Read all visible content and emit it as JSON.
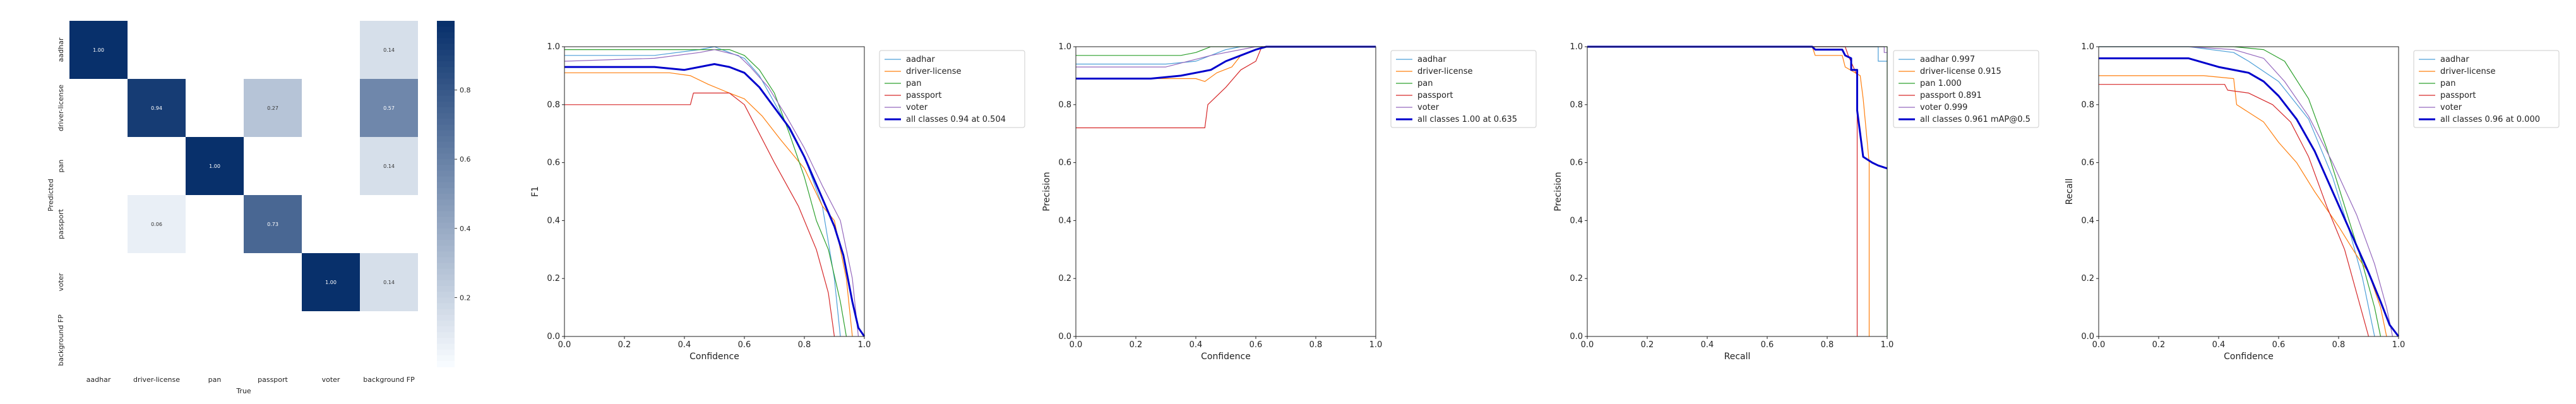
{
  "chart_data": [
    {
      "type": "heatmap",
      "xlabel": "True",
      "ylabel": "Predicted",
      "x_categories": [
        "aadhar",
        "driver-license",
        "pan",
        "passport",
        "voter",
        "background FP"
      ],
      "y_categories": [
        "aadhar",
        "driver-license",
        "pan",
        "passport",
        "voter",
        "background FP"
      ],
      "cells": [
        {
          "row": 0,
          "col": 0,
          "value": 1.0,
          "label": "1.00"
        },
        {
          "row": 0,
          "col": 5,
          "value": 0.14,
          "label": "0.14"
        },
        {
          "row": 1,
          "col": 1,
          "value": 0.94,
          "label": "0.94"
        },
        {
          "row": 1,
          "col": 3,
          "value": 0.27,
          "label": "0.27"
        },
        {
          "row": 1,
          "col": 5,
          "value": 0.57,
          "label": "0.57"
        },
        {
          "row": 2,
          "col": 2,
          "value": 1.0,
          "label": "1.00"
        },
        {
          "row": 2,
          "col": 5,
          "value": 0.14,
          "label": "0.14"
        },
        {
          "row": 3,
          "col": 1,
          "value": 0.06,
          "label": "0.06"
        },
        {
          "row": 3,
          "col": 3,
          "value": 0.73,
          "label": "0.73"
        },
        {
          "row": 4,
          "col": 4,
          "value": 1.0,
          "label": "1.00"
        },
        {
          "row": 4,
          "col": 5,
          "value": 0.14,
          "label": "0.14"
        }
      ],
      "colorbar_ticks": [
        "0.2",
        "0.4",
        "0.6",
        "0.8"
      ],
      "colorbar_tick_values": [
        0.2,
        0.4,
        0.6,
        0.8
      ],
      "colorbar_range": [
        0,
        1
      ],
      "colors": {
        "low": "#f7fbff",
        "high": "#08306b"
      }
    },
    {
      "type": "line",
      "xlabel": "Confidence",
      "ylabel": "F1",
      "xlim": [
        0,
        1
      ],
      "ylim": [
        0,
        1
      ],
      "xticks": [
        "0.0",
        "0.2",
        "0.4",
        "0.6",
        "0.8",
        "1.0"
      ],
      "yticks": [
        "0.0",
        "0.2",
        "0.4",
        "0.6",
        "0.8",
        "1.0"
      ],
      "legend": "top-right",
      "series": [
        {
          "name": "aadhar",
          "color": "#4c9fd8",
          "width": 1.2,
          "x": [
            0,
            0.3,
            0.45,
            0.5,
            0.6,
            0.65,
            0.72,
            0.8,
            0.86,
            0.9,
            0.92
          ],
          "y": [
            0.97,
            0.97,
            0.99,
            1.0,
            0.96,
            0.9,
            0.77,
            0.62,
            0.45,
            0.2,
            0
          ]
        },
        {
          "name": "driver-license",
          "color": "#ff7f0e",
          "width": 1.2,
          "x": [
            0,
            0.35,
            0.42,
            0.48,
            0.55,
            0.6,
            0.66,
            0.72,
            0.8,
            0.86,
            0.9,
            0.94,
            0.96
          ],
          "y": [
            0.91,
            0.91,
            0.9,
            0.87,
            0.84,
            0.82,
            0.76,
            0.68,
            0.58,
            0.45,
            0.4,
            0.2,
            0
          ]
        },
        {
          "name": "pan",
          "color": "#2ca02c",
          "width": 1.2,
          "x": [
            0,
            0.45,
            0.55,
            0.6,
            0.65,
            0.7,
            0.75,
            0.8,
            0.84,
            0.88,
            0.92,
            0.94
          ],
          "y": [
            0.99,
            0.99,
            0.99,
            0.97,
            0.92,
            0.84,
            0.7,
            0.55,
            0.4,
            0.3,
            0.12,
            0
          ]
        },
        {
          "name": "passport",
          "color": "#d62728",
          "width": 1.2,
          "x": [
            0,
            0.42,
            0.43,
            0.5,
            0.55,
            0.6,
            0.7,
            0.78,
            0.84,
            0.88,
            0.9
          ],
          "y": [
            0.8,
            0.8,
            0.84,
            0.84,
            0.84,
            0.8,
            0.6,
            0.45,
            0.3,
            0.15,
            0
          ]
        },
        {
          "name": "voter",
          "color": "#9467bd",
          "width": 1.2,
          "x": [
            0,
            0.3,
            0.45,
            0.5,
            0.58,
            0.62,
            0.68,
            0.74,
            0.8,
            0.86,
            0.92,
            0.96,
            0.98
          ],
          "y": [
            0.95,
            0.96,
            0.98,
            0.99,
            0.97,
            0.93,
            0.86,
            0.76,
            0.65,
            0.52,
            0.4,
            0.2,
            0
          ]
        },
        {
          "name": "all classes 0.94 at 0.504",
          "color": "#0000cc",
          "width": 3,
          "x": [
            0,
            0.3,
            0.4,
            0.45,
            0.5,
            0.55,
            0.6,
            0.65,
            0.7,
            0.75,
            0.8,
            0.85,
            0.9,
            0.93,
            0.96,
            0.98,
            1.0
          ],
          "y": [
            0.93,
            0.93,
            0.92,
            0.93,
            0.94,
            0.93,
            0.91,
            0.86,
            0.79,
            0.72,
            0.62,
            0.5,
            0.38,
            0.28,
            0.12,
            0.03,
            0
          ]
        }
      ]
    },
    {
      "type": "line",
      "xlabel": "Confidence",
      "ylabel": "Precision",
      "xlim": [
        0,
        1
      ],
      "ylim": [
        0,
        1
      ],
      "xticks": [
        "0.0",
        "0.2",
        "0.4",
        "0.6",
        "0.8",
        "1.0"
      ],
      "yticks": [
        "0.0",
        "0.2",
        "0.4",
        "0.6",
        "0.8",
        "1.0"
      ],
      "legend": "top-right",
      "series": [
        {
          "name": "aadhar",
          "color": "#4c9fd8",
          "width": 1.2,
          "x": [
            0,
            0.3,
            0.4,
            0.5,
            0.55,
            0.6,
            0.62,
            1.0
          ],
          "y": [
            0.94,
            0.94,
            0.95,
            0.99,
            1.0,
            1.0,
            1.0,
            1.0
          ]
        },
        {
          "name": "driver-license",
          "color": "#ff7f0e",
          "width": 1.2,
          "x": [
            0,
            0.4,
            0.43,
            0.47,
            0.52,
            0.55,
            0.6,
            0.63,
            1.0
          ],
          "y": [
            0.89,
            0.89,
            0.88,
            0.91,
            0.93,
            0.97,
            0.99,
            1.0,
            1.0
          ]
        },
        {
          "name": "pan",
          "color": "#2ca02c",
          "width": 1.2,
          "x": [
            0,
            0.35,
            0.4,
            0.45,
            0.5,
            1.0
          ],
          "y": [
            0.97,
            0.97,
            0.98,
            1.0,
            1.0,
            1.0
          ]
        },
        {
          "name": "passport",
          "color": "#d62728",
          "width": 1.2,
          "x": [
            0,
            0.43,
            0.44,
            0.5,
            0.55,
            0.6,
            0.62,
            1.0
          ],
          "y": [
            0.72,
            0.72,
            0.8,
            0.86,
            0.92,
            0.95,
            1.0,
            1.0
          ]
        },
        {
          "name": "voter",
          "color": "#9467bd",
          "width": 1.2,
          "x": [
            0,
            0.3,
            0.45,
            0.55,
            0.6,
            1.0
          ],
          "y": [
            0.93,
            0.93,
            0.97,
            0.99,
            1.0,
            1.0
          ]
        },
        {
          "name": "all classes 1.00 at 0.635",
          "color": "#0000cc",
          "width": 3,
          "x": [
            0,
            0.25,
            0.35,
            0.45,
            0.5,
            0.55,
            0.6,
            0.635,
            1.0
          ],
          "y": [
            0.89,
            0.89,
            0.9,
            0.92,
            0.95,
            0.97,
            0.99,
            1.0,
            1.0
          ]
        }
      ]
    },
    {
      "type": "line",
      "xlabel": "Recall",
      "ylabel": "Precision",
      "xlim": [
        0,
        1
      ],
      "ylim": [
        0,
        1
      ],
      "xticks": [
        "0.0",
        "0.2",
        "0.4",
        "0.6",
        "0.8",
        "1.0"
      ],
      "yticks": [
        "0.0",
        "0.2",
        "0.4",
        "0.6",
        "0.8",
        "1.0"
      ],
      "legend": "top-right",
      "series": [
        {
          "name": "aadhar 0.997",
          "color": "#4c9fd8",
          "width": 1.2,
          "x": [
            0,
            0.97,
            0.97,
            1.0,
            1.0
          ],
          "y": [
            1.0,
            1.0,
            0.95,
            0.95,
            0.95
          ]
        },
        {
          "name": "driver-license 0.915",
          "color": "#ff7f0e",
          "width": 1.2,
          "x": [
            0,
            0.75,
            0.76,
            0.85,
            0.86,
            0.91,
            0.92,
            0.94,
            0.94
          ],
          "y": [
            1.0,
            1.0,
            0.97,
            0.97,
            0.93,
            0.9,
            0.82,
            0.6,
            0.0
          ]
        },
        {
          "name": "pan 1.000",
          "color": "#2ca02c",
          "width": 1.2,
          "x": [
            0,
            1.0,
            1.0
          ],
          "y": [
            1.0,
            1.0,
            0.0
          ]
        },
        {
          "name": "passport 0.891",
          "color": "#d62728",
          "width": 1.2,
          "x": [
            0,
            0.86,
            0.87,
            0.9,
            0.9
          ],
          "y": [
            1.0,
            1.0,
            0.97,
            0.9,
            0.0
          ]
        },
        {
          "name": "voter 0.999",
          "color": "#9467bd",
          "width": 1.2,
          "x": [
            0,
            0.99,
            0.99,
            1.0
          ],
          "y": [
            1.0,
            1.0,
            0.98,
            0.98
          ]
        },
        {
          "name": "all classes 0.961 mAP@0.5",
          "color": "#0000cc",
          "width": 3,
          "x": [
            0,
            0.75,
            0.76,
            0.85,
            0.86,
            0.88,
            0.88,
            0.9,
            0.9,
            0.92,
            0.95,
            0.97,
            1.0
          ],
          "y": [
            1.0,
            1.0,
            0.99,
            0.99,
            0.97,
            0.96,
            0.92,
            0.92,
            0.78,
            0.62,
            0.6,
            0.59,
            0.58
          ]
        }
      ]
    },
    {
      "type": "line",
      "xlabel": "Confidence",
      "ylabel": "Recall",
      "xlim": [
        0,
        1
      ],
      "ylim": [
        0,
        1
      ],
      "xticks": [
        "0.0",
        "0.2",
        "0.4",
        "0.6",
        "0.8",
        "1.0"
      ],
      "yticks": [
        "0.0",
        "0.2",
        "0.4",
        "0.6",
        "0.8",
        "1.0"
      ],
      "legend": "top-right",
      "series": [
        {
          "name": "aadhar",
          "color": "#4c9fd8",
          "width": 1.2,
          "x": [
            0,
            0.3,
            0.45,
            0.5,
            0.6,
            0.7,
            0.78,
            0.84,
            0.88,
            0.92
          ],
          "y": [
            1.0,
            1.0,
            0.98,
            0.95,
            0.88,
            0.75,
            0.55,
            0.35,
            0.2,
            0
          ]
        },
        {
          "name": "driver-license",
          "color": "#ff7f0e",
          "width": 1.2,
          "x": [
            0,
            0.35,
            0.45,
            0.46,
            0.55,
            0.6,
            0.66,
            0.72,
            0.8,
            0.86,
            0.9,
            0.94,
            0.96
          ],
          "y": [
            0.9,
            0.9,
            0.89,
            0.8,
            0.74,
            0.67,
            0.6,
            0.5,
            0.38,
            0.28,
            0.22,
            0.1,
            0
          ]
        },
        {
          "name": "pan",
          "color": "#2ca02c",
          "width": 1.2,
          "x": [
            0,
            0.45,
            0.55,
            0.62,
            0.7,
            0.76,
            0.82,
            0.88,
            0.92,
            0.94
          ],
          "y": [
            1.0,
            1.0,
            0.99,
            0.95,
            0.82,
            0.65,
            0.45,
            0.25,
            0.1,
            0
          ]
        },
        {
          "name": "passport",
          "color": "#d62728",
          "width": 1.2,
          "x": [
            0,
            0.42,
            0.43,
            0.5,
            0.58,
            0.64,
            0.7,
            0.76,
            0.82,
            0.86,
            0.9
          ],
          "y": [
            0.87,
            0.87,
            0.85,
            0.84,
            0.8,
            0.74,
            0.62,
            0.45,
            0.3,
            0.15,
            0
          ]
        },
        {
          "name": "voter",
          "color": "#9467bd",
          "width": 1.2,
          "x": [
            0,
            0.3,
            0.45,
            0.55,
            0.62,
            0.7,
            0.78,
            0.86,
            0.92,
            0.96,
            0.98
          ],
          "y": [
            1.0,
            1.0,
            0.99,
            0.96,
            0.88,
            0.76,
            0.6,
            0.42,
            0.25,
            0.1,
            0
          ]
        },
        {
          "name": "all classes 0.96 at 0.000",
          "color": "#0000cc",
          "width": 3,
          "x": [
            0,
            0.3,
            0.4,
            0.5,
            0.55,
            0.6,
            0.66,
            0.72,
            0.78,
            0.84,
            0.9,
            0.94,
            0.97,
            1.0
          ],
          "y": [
            0.96,
            0.96,
            0.93,
            0.91,
            0.88,
            0.83,
            0.75,
            0.64,
            0.5,
            0.36,
            0.22,
            0.12,
            0.04,
            0
          ]
        }
      ]
    }
  ]
}
